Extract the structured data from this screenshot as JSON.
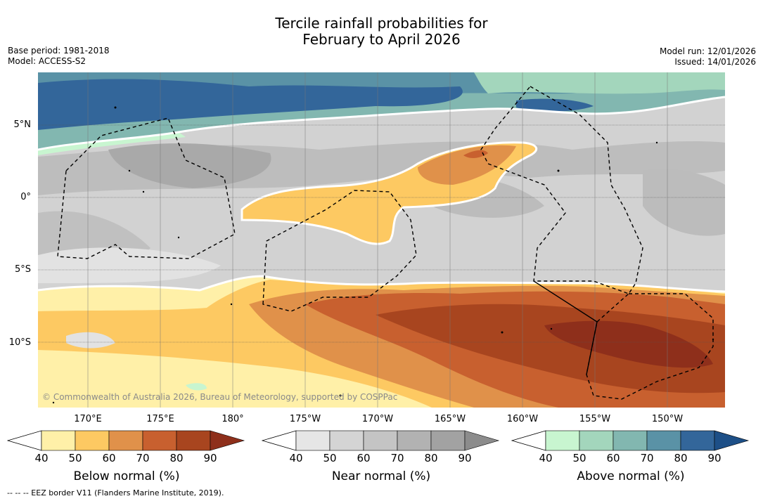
{
  "title": {
    "line1": "Tercile rainfall probabilities for",
    "line2": "February to April 2026"
  },
  "meta": {
    "base_period": "Base period: 1981-2018",
    "model": "Model: ACCESS-S2",
    "model_run": "Model run: 12/01/2026",
    "issued": "Issued: 14/01/2026"
  },
  "map": {
    "lat_labels": [
      "5°N",
      "0°",
      "5°S",
      "10°S"
    ],
    "lon_labels": [
      "170°E",
      "175°E",
      "180°",
      "175°W",
      "170°W",
      "165°W",
      "160°W",
      "155°W",
      "150°W"
    ],
    "copyright": "© Commonwealth of Australia 2026, Bureau of Meteorology, supported by COSPPac"
  },
  "legend": {
    "below": {
      "title": "Below normal (%)",
      "ticks": [
        "40",
        "50",
        "60",
        "70",
        "80",
        "90"
      ],
      "colors": [
        "#fff0a8",
        "#fdc962",
        "#e0914a",
        "#c8602f",
        "#a8451f",
        "#8e2f1b"
      ]
    },
    "near": {
      "title": "Near normal (%)",
      "ticks": [
        "40",
        "50",
        "60",
        "70",
        "80",
        "90"
      ],
      "colors": [
        "#e6e6e6",
        "#d4d4d4",
        "#c4c4c4",
        "#b2b2b2",
        "#a2a2a2",
        "#8c8c8c"
      ]
    },
    "above": {
      "title": "Above normal (%)",
      "ticks": [
        "40",
        "50",
        "60",
        "70",
        "80",
        "90"
      ],
      "colors": [
        "#c8f5d0",
        "#a3d6bc",
        "#82b7b0",
        "#5a92a6",
        "#33669a",
        "#1d4f87"
      ]
    }
  },
  "footnote": "--  --  -- EEZ border V11 (Flanders Marine Institute, 2019)."
}
